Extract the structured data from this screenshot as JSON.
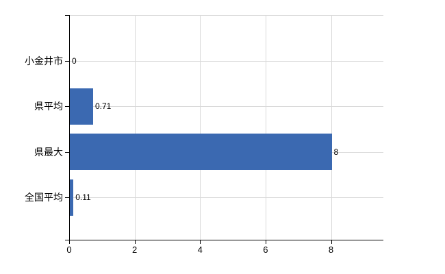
{
  "chart_data": {
    "type": "bar",
    "orientation": "horizontal",
    "title": "",
    "categories": [
      "小金井市",
      "県平均",
      "県最大",
      "全国平均"
    ],
    "values": [
      0,
      0.71,
      8,
      0.11
    ],
    "data_labels": [
      "0",
      "0.71",
      "8",
      "0.11"
    ],
    "xticks": [
      0,
      2,
      4,
      6,
      8
    ],
    "xtick_labels": [
      "0",
      "2",
      "4",
      "6",
      "8"
    ],
    "xlim": [
      0,
      9.6
    ],
    "grid": true,
    "legend": false,
    "colors": {
      "bar": "#3b69b1",
      "grid": "#d9d9d9",
      "axis": "#000000",
      "background": "#ffffff",
      "text": "#000000"
    }
  }
}
